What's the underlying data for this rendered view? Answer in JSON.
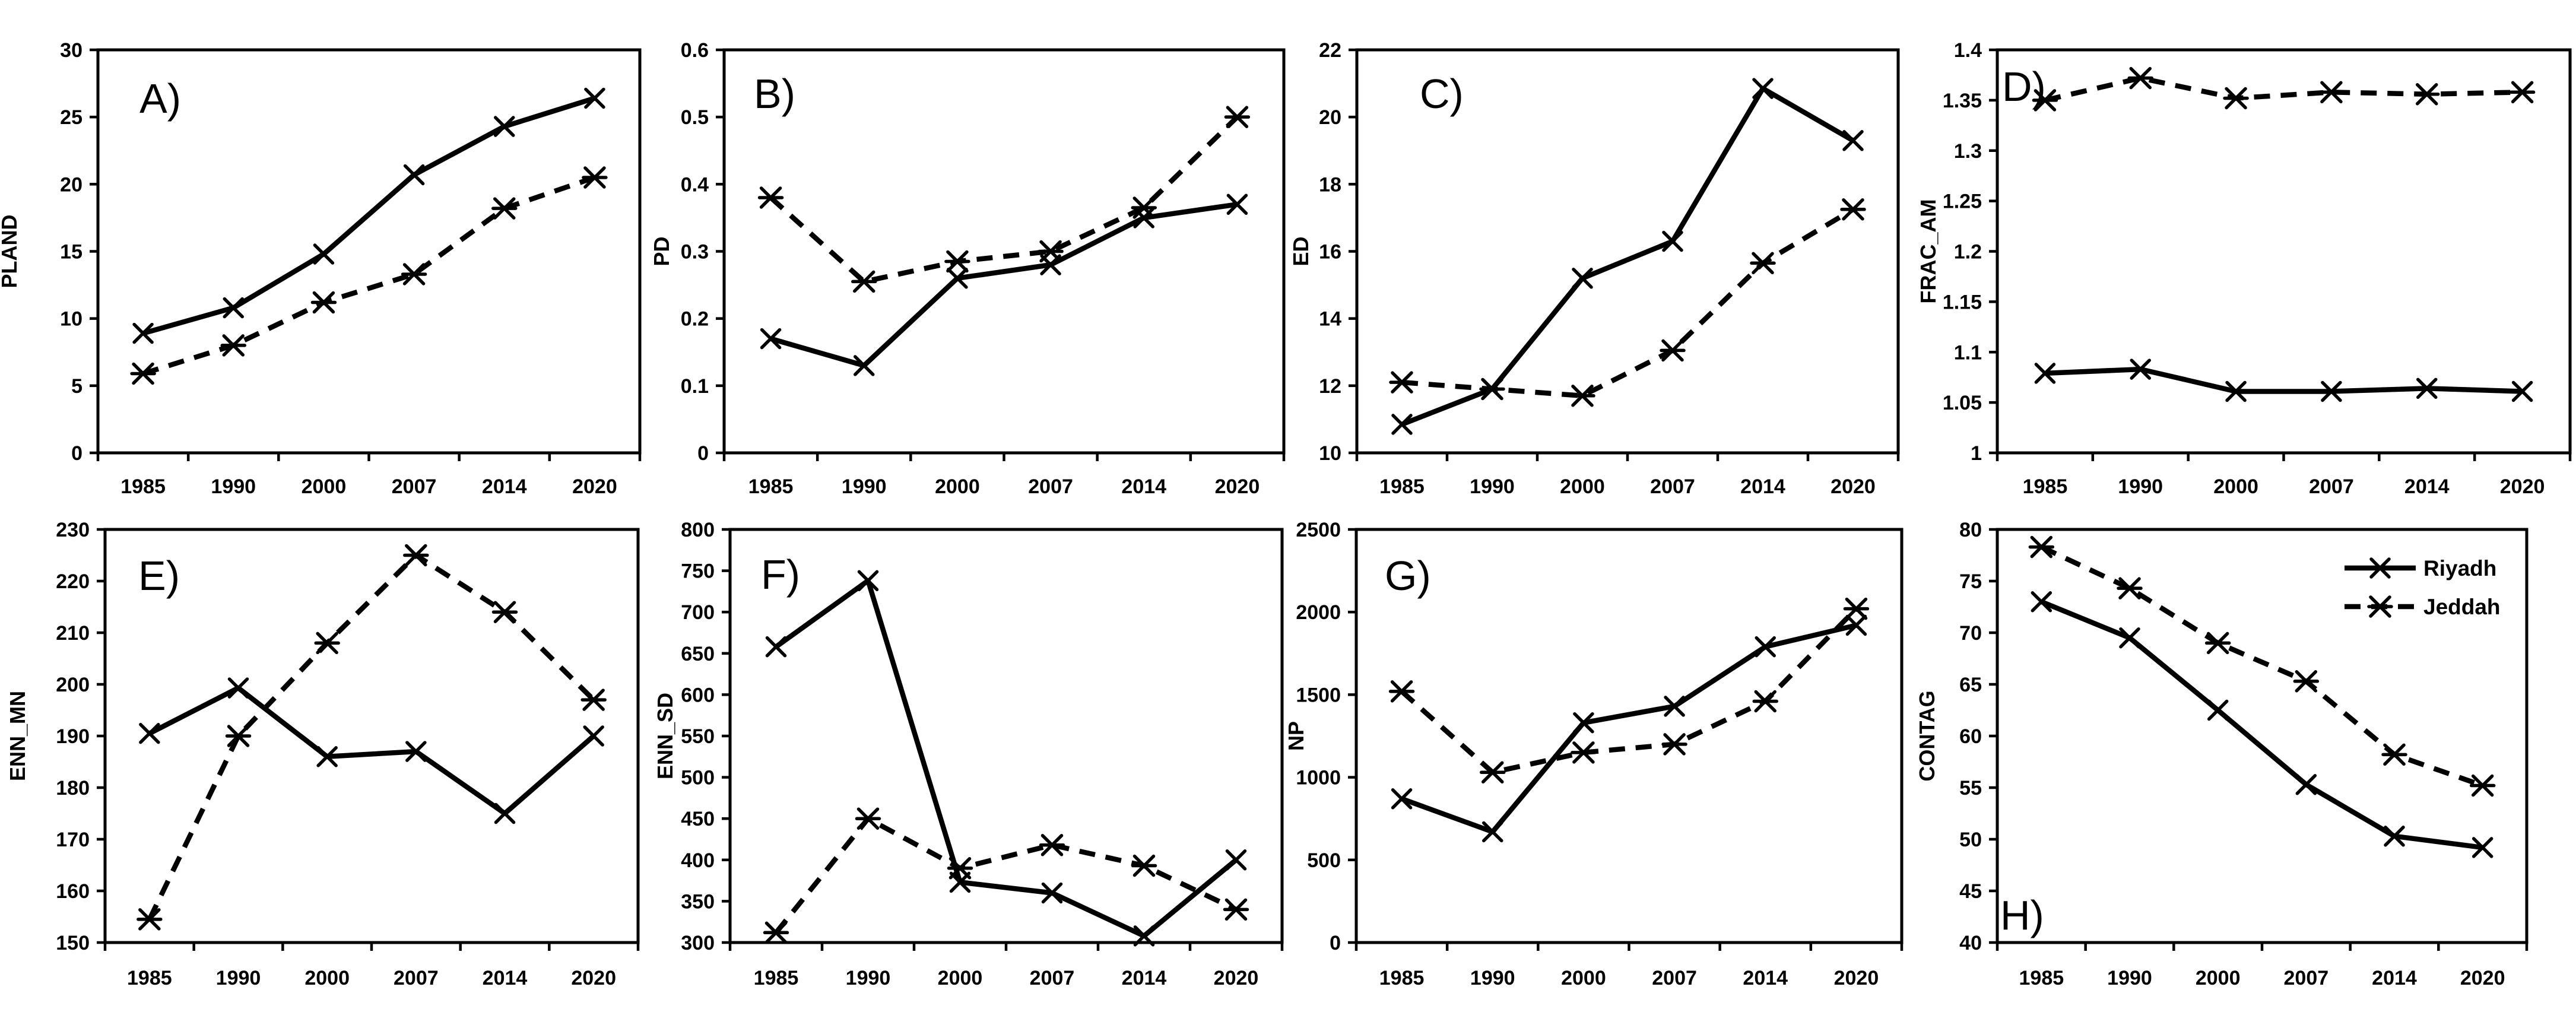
{
  "figure": {
    "background": "#ffffff",
    "line_color": "#000000",
    "categories": [
      "1985",
      "1990",
      "2000",
      "2007",
      "2014",
      "2020"
    ],
    "legend": {
      "entries": [
        {
          "label": "Riyadh",
          "style": "solid",
          "marker": "x"
        },
        {
          "label": "Jeddah",
          "style": "dashed",
          "marker": "star"
        }
      ],
      "position": "top-right-of-panel-H"
    }
  },
  "chart_data": [
    {
      "type": "line",
      "panel_label": "A)",
      "ylabel": "PLAND",
      "ylim": [
        0,
        30
      ],
      "yticks": [
        "0",
        "5",
        "10",
        "15",
        "20",
        "25",
        "30"
      ],
      "x": [
        "1985",
        "1990",
        "2000",
        "2007",
        "2014",
        "2020"
      ],
      "series": [
        {
          "name": "Riyadh",
          "style": "solid",
          "marker": "x",
          "values": [
            8.9,
            10.8,
            14.8,
            20.7,
            24.3,
            26.4
          ]
        },
        {
          "name": "Jeddah",
          "style": "dashed",
          "marker": "star",
          "values": [
            5.9,
            8.0,
            11.2,
            13.3,
            18.2,
            20.5
          ]
        }
      ]
    },
    {
      "type": "line",
      "panel_label": "B)",
      "ylabel": "PD",
      "ylim": [
        0,
        0.6
      ],
      "yticks": [
        "0",
        "0.1",
        "0.2",
        "0.3",
        "0.4",
        "0.5",
        "0.6"
      ],
      "x": [
        "1985",
        "1990",
        "2000",
        "2007",
        "2014",
        "2020"
      ],
      "series": [
        {
          "name": "Riyadh",
          "style": "solid",
          "marker": "x",
          "values": [
            0.17,
            0.13,
            0.26,
            0.28,
            0.35,
            0.37
          ]
        },
        {
          "name": "Jeddah",
          "style": "dashed",
          "marker": "star",
          "values": [
            0.38,
            0.255,
            0.285,
            0.3,
            0.365,
            0.5
          ]
        }
      ]
    },
    {
      "type": "line",
      "panel_label": "C)",
      "ylabel": "ED",
      "ylim": [
        10,
        22
      ],
      "yticks": [
        "10",
        "12",
        "14",
        "16",
        "18",
        "20",
        "22"
      ],
      "x": [
        "1985",
        "1990",
        "2000",
        "2007",
        "2014",
        "2020"
      ],
      "series": [
        {
          "name": "Riyadh",
          "style": "solid",
          "marker": "x",
          "values": [
            10.85,
            11.9,
            15.2,
            16.3,
            20.85,
            19.3
          ]
        },
        {
          "name": "Jeddah",
          "style": "dashed",
          "marker": "star",
          "values": [
            12.1,
            11.9,
            11.7,
            13.05,
            15.65,
            17.25
          ]
        }
      ]
    },
    {
      "type": "line",
      "panel_label": "D)",
      "ylabel": "FRAC_AM",
      "ylim": [
        1,
        1.4
      ],
      "yticks": [
        "1",
        "1.05",
        "1.1",
        "1.15",
        "1.2",
        "1.25",
        "1.3",
        "1.35",
        "1.4"
      ],
      "x": [
        "1985",
        "1990",
        "2000",
        "2007",
        "2014",
        "2020"
      ],
      "series": [
        {
          "name": "Riyadh",
          "style": "solid",
          "marker": "x",
          "values": [
            1.079,
            1.083,
            1.061,
            1.061,
            1.064,
            1.061
          ]
        },
        {
          "name": "Jeddah",
          "style": "dashed",
          "marker": "star",
          "values": [
            1.35,
            1.372,
            1.352,
            1.358,
            1.356,
            1.358
          ]
        }
      ]
    },
    {
      "type": "line",
      "panel_label": "E)",
      "ylabel": "ENN_MN",
      "ylim": [
        150,
        230
      ],
      "yticks": [
        "150",
        "160",
        "170",
        "180",
        "190",
        "200",
        "210",
        "220",
        "230"
      ],
      "x": [
        "1985",
        "1990",
        "2000",
        "2007",
        "2014",
        "2020"
      ],
      "series": [
        {
          "name": "Riyadh",
          "style": "solid",
          "marker": "x",
          "values": [
            190.5,
            199.3,
            186,
            187,
            175,
            190
          ]
        },
        {
          "name": "Jeddah",
          "style": "dashed",
          "marker": "star",
          "values": [
            154.5,
            190,
            208,
            225,
            214,
            197
          ]
        }
      ]
    },
    {
      "type": "line",
      "panel_label": "F)",
      "ylabel": "ENN_SD",
      "ylim": [
        300,
        800
      ],
      "yticks": [
        "300",
        "350",
        "400",
        "450",
        "500",
        "550",
        "600",
        "650",
        "700",
        "750",
        "800"
      ],
      "x": [
        "1985",
        "1990",
        "2000",
        "2007",
        "2014",
        "2020"
      ],
      "series": [
        {
          "name": "Riyadh",
          "style": "solid",
          "marker": "x",
          "values": [
            658,
            738,
            373,
            360,
            308,
            400
          ]
        },
        {
          "name": "Jeddah",
          "style": "dashed",
          "marker": "star",
          "values": [
            312,
            450,
            390,
            418,
            393,
            340
          ]
        }
      ]
    },
    {
      "type": "line",
      "panel_label": "G)",
      "ylabel": "NP",
      "ylim": [
        0,
        2500
      ],
      "yticks": [
        "0",
        "500",
        "1000",
        "1500",
        "2000",
        "2500"
      ],
      "x": [
        "1985",
        "1990",
        "2000",
        "2007",
        "2014",
        "2020"
      ],
      "series": [
        {
          "name": "Riyadh",
          "style": "solid",
          "marker": "x",
          "values": [
            870,
            670,
            1330,
            1430,
            1790,
            1920
          ]
        },
        {
          "name": "Jeddah",
          "style": "dashed",
          "marker": "star",
          "values": [
            1520,
            1030,
            1150,
            1200,
            1460,
            2020
          ]
        }
      ]
    },
    {
      "type": "line",
      "panel_label": "H)",
      "ylabel": "CONTAG",
      "ylim": [
        40,
        80
      ],
      "yticks": [
        "40",
        "45",
        "50",
        "55",
        "60",
        "65",
        "70",
        "75",
        "80"
      ],
      "x": [
        "1985",
        "1990",
        "2000",
        "2007",
        "2014",
        "2020"
      ],
      "has_legend": true,
      "series": [
        {
          "name": "Riyadh",
          "style": "solid",
          "marker": "x",
          "values": [
            73,
            69.5,
            62.5,
            55.3,
            50.3,
            49.2
          ]
        },
        {
          "name": "Jeddah",
          "style": "dashed",
          "marker": "star",
          "values": [
            78.3,
            74.3,
            69,
            65.3,
            58.2,
            55.2
          ]
        }
      ]
    }
  ]
}
